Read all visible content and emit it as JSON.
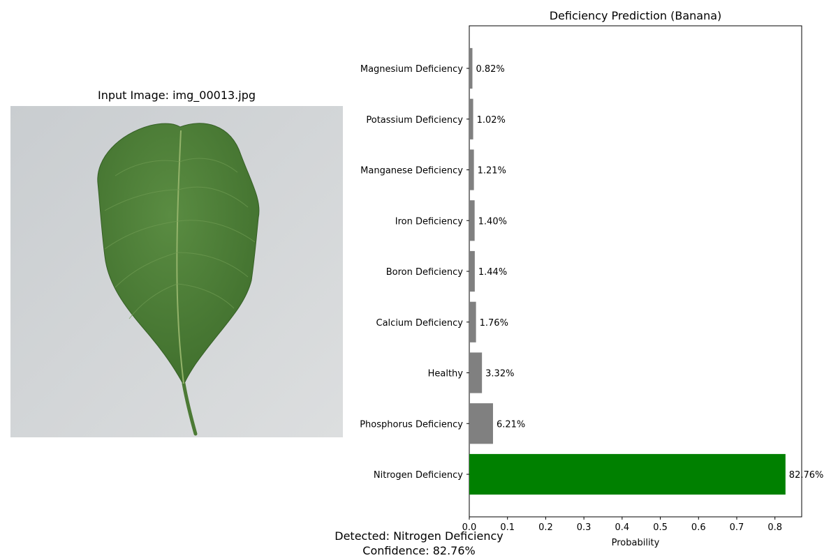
{
  "image_panel": {
    "title": "Input Image: img_00013.jpg",
    "background_color": "#d6d8da",
    "leaf_color": "#4a7c35"
  },
  "chart_data": {
    "type": "bar",
    "orientation": "horizontal",
    "title": "Deficiency Prediction (Banana)",
    "xlabel": "Probability",
    "ylabel": "",
    "xlim": [
      0,
      0.87
    ],
    "xticks": [
      0.0,
      0.1,
      0.2,
      0.3,
      0.4,
      0.5,
      0.6,
      0.7,
      0.8
    ],
    "grid": false,
    "categories": [
      "Nitrogen Deficiency",
      "Phosphorus Deficiency",
      "Healthy",
      "Calcium Deficiency",
      "Boron Deficiency",
      "Iron Deficiency",
      "Manganese Deficiency",
      "Potassium Deficiency",
      "Magnesium Deficiency"
    ],
    "values": [
      0.8276,
      0.0621,
      0.0332,
      0.0176,
      0.0144,
      0.014,
      0.0121,
      0.0102,
      0.0082
    ],
    "labels": [
      "82.76%",
      "6.21%",
      "3.32%",
      "1.76%",
      "1.44%",
      "1.40%",
      "1.21%",
      "1.02%",
      "0.82%"
    ],
    "colors": {
      "highlight": "#008000",
      "default": "#808080"
    },
    "highlight_category": "Nitrogen Deficiency"
  },
  "result": {
    "detected": "Detected: Nitrogen Deficiency",
    "confidence": "Confidence: 82.76%"
  }
}
